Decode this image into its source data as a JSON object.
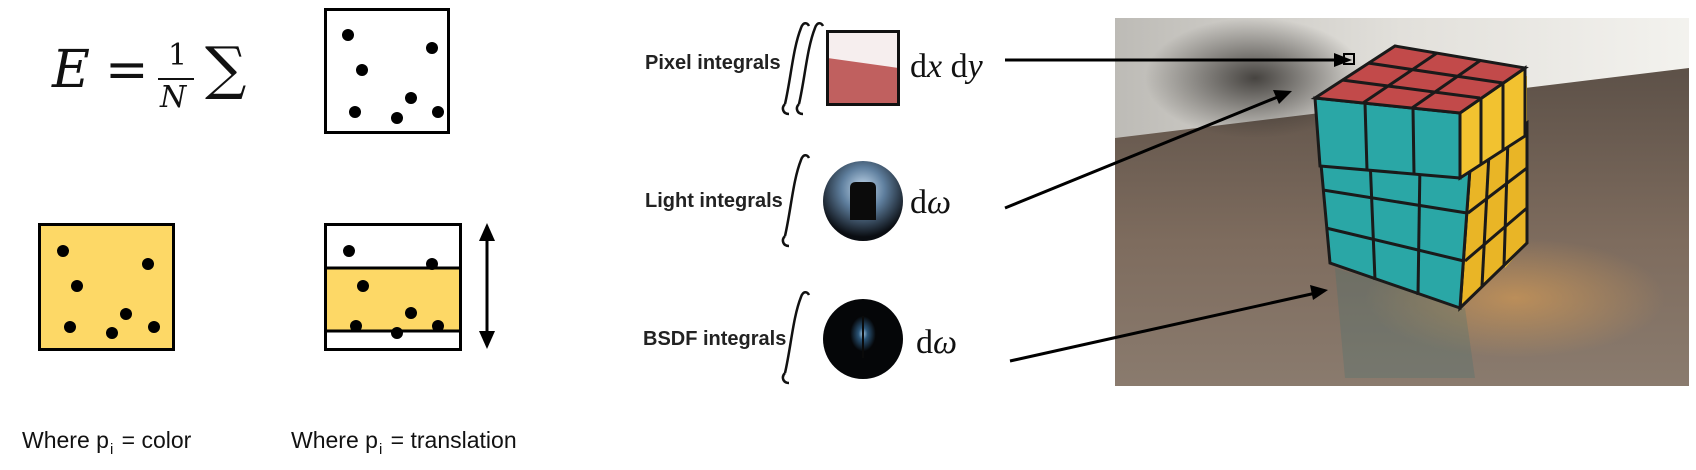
{
  "formula": {
    "lhs": "E",
    "equals": "=",
    "numerator": "1",
    "denominator": "N",
    "sum": "∑"
  },
  "captions": {
    "color": {
      "prefix": "Where p",
      "sub": "i",
      "suffix": " = color"
    },
    "translation": {
      "prefix": "Where p",
      "sub": "i",
      "suffix": " = translation"
    }
  },
  "integrals": [
    {
      "label": "Pixel integrals",
      "measure": "dx dy",
      "measure_d1": "d",
      "measure_v1": "x",
      "measure_d2": "d",
      "measure_v2": "y"
    },
    {
      "label": "Light integrals",
      "measure_d": "d",
      "measure_v": "ω"
    },
    {
      "label": "BSDF integrals",
      "measure_d": "d",
      "measure_v": "ω"
    }
  ],
  "colors": {
    "yellow": "#fdd866",
    "pixel_red": "#c0605f",
    "cube_red": "#c24a4a",
    "cube_teal": "#2aa7a6",
    "cube_yellow": "#f2c230",
    "table": "#7a6a5c"
  }
}
